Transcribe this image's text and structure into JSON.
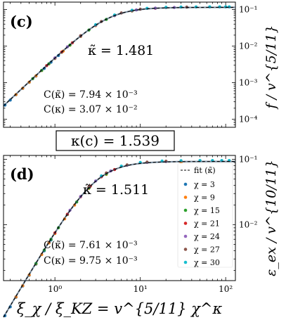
{
  "figure": {
    "middle_box_label": "κ(c) = 1.539",
    "xlabel": "ξ_χ / ξ_KZ = v^{5/11} χ^κ"
  },
  "chart_data": [
    {
      "type": "scatter",
      "panel_label": "(c)",
      "kappa_text": "κ̃ = 1.481",
      "annotations": [
        "C(κ̃) = 7.94 × 10⁻³",
        "C(κ) = 3.07 × 10⁻²"
      ],
      "ylabel": "f / v^{5/11}",
      "xscale": "log",
      "yscale": "log",
      "xlim": [
        0.25,
        130
      ],
      "ylim": [
        6e-05,
        0.16
      ],
      "yticks": [
        {
          "value": 0.0001,
          "label": "10⁻⁴"
        },
        {
          "value": 0.001,
          "label": "10⁻³"
        },
        {
          "value": 0.01,
          "label": "10⁻²"
        },
        {
          "value": 0.1,
          "label": "10⁻¹"
        }
      ],
      "xticks": [],
      "curve": {
        "name": "fit (κ̃)",
        "a": 0.0049,
        "b": 0.115,
        "p": 2.2
      },
      "series": [
        {
          "name": "χ = 3",
          "color": "#1f77b4",
          "x": [
            0.26,
            0.3,
            0.35,
            0.42,
            0.5,
            0.6,
            0.75,
            0.9,
            1.1
          ]
        },
        {
          "name": "χ = 9",
          "color": "#ff7f0e",
          "x": [
            0.35,
            0.42,
            0.5,
            0.6,
            0.7,
            0.85,
            1.0,
            1.25,
            1.5,
            2.0,
            3.0
          ]
        },
        {
          "name": "χ = 15",
          "color": "#2ca02c",
          "x": [
            0.55,
            0.7,
            0.85,
            1.0,
            1.2,
            1.5,
            2.0,
            2.5,
            4.0,
            8.0
          ]
        },
        {
          "name": "χ = 21",
          "color": "#d62728",
          "x": [
            0.8,
            1.0,
            1.2,
            1.6,
            2.0,
            3.0,
            5.0,
            8.0,
            15.0
          ]
        },
        {
          "name": "χ = 24",
          "color": "#9467bd",
          "x": [
            1.0,
            1.4,
            2.0,
            3.0,
            5.0,
            9.0,
            15.0,
            25.0
          ]
        },
        {
          "name": "χ = 27",
          "color": "#8c564b",
          "x": [
            2.0,
            3.5,
            6.0,
            10.0,
            20.0,
            35.0
          ]
        },
        {
          "name": "χ = 30",
          "color": "#17becf",
          "x": [
            3.0,
            5.0,
            8.0,
            12.0,
            20.0,
            30.0,
            45.0,
            65.0,
            85.0,
            100.0,
            110.0
          ]
        }
      ]
    },
    {
      "type": "scatter",
      "panel_label": "(d)",
      "kappa_text": "κ̃ = 1.511",
      "annotations": [
        "C(κ̃) = 7.61 × 10⁻³",
        "C(κ) = 9.75 × 10⁻³"
      ],
      "ylabel": "ε_ex / v^{10/11}",
      "xscale": "log",
      "yscale": "log",
      "xlim": [
        0.25,
        130
      ],
      "ylim": [
        0.0014,
        0.115
      ],
      "yticks": [
        {
          "value": 0.01,
          "label": "10⁻²"
        },
        {
          "value": 0.1,
          "label": "10⁻¹"
        }
      ],
      "xticks": [
        {
          "value": 1,
          "label": "10⁰"
        },
        {
          "value": 10,
          "label": "10¹"
        },
        {
          "value": 100,
          "label": "10²"
        }
      ],
      "legend": {
        "placement": "right"
      },
      "curve": {
        "name": "fit (κ̃)",
        "a": 0.0082,
        "b": 0.093,
        "p": 2.2
      },
      "series": [
        {
          "name": "χ = 3",
          "color": "#1f77b4",
          "x": [
            0.26,
            0.3,
            0.35,
            0.42,
            0.5,
            0.6,
            0.75,
            0.9
          ]
        },
        {
          "name": "χ = 9",
          "color": "#ff7f0e",
          "x": [
            0.35,
            0.42,
            0.5,
            0.6,
            0.7,
            0.85,
            1.0,
            1.3,
            1.7,
            2.5,
            4.0,
            30.0
          ]
        },
        {
          "name": "χ = 15",
          "color": "#2ca02c",
          "x": [
            0.6,
            0.75,
            0.9,
            1.1,
            1.4,
            1.8,
            2.5,
            4.0
          ]
        },
        {
          "name": "χ = 21",
          "color": "#d62728",
          "x": [
            1.0,
            1.4,
            2.0,
            2.6,
            3.5,
            5.0
          ]
        },
        {
          "name": "χ = 24",
          "color": "#9467bd",
          "x": [
            1.5,
            2.0,
            3.0,
            4.5,
            7.0,
            12.0,
            20.0
          ]
        },
        {
          "name": "χ = 27",
          "color": "#8c564b",
          "x": [
            2.5,
            4.0,
            7.0,
            12.0,
            20.0
          ]
        },
        {
          "name": "χ = 30",
          "color": "#17becf",
          "x": [
            3.5,
            6.0,
            10.0,
            18.0,
            30.0,
            50.0,
            70.0,
            90.0,
            110.0
          ]
        }
      ]
    }
  ]
}
